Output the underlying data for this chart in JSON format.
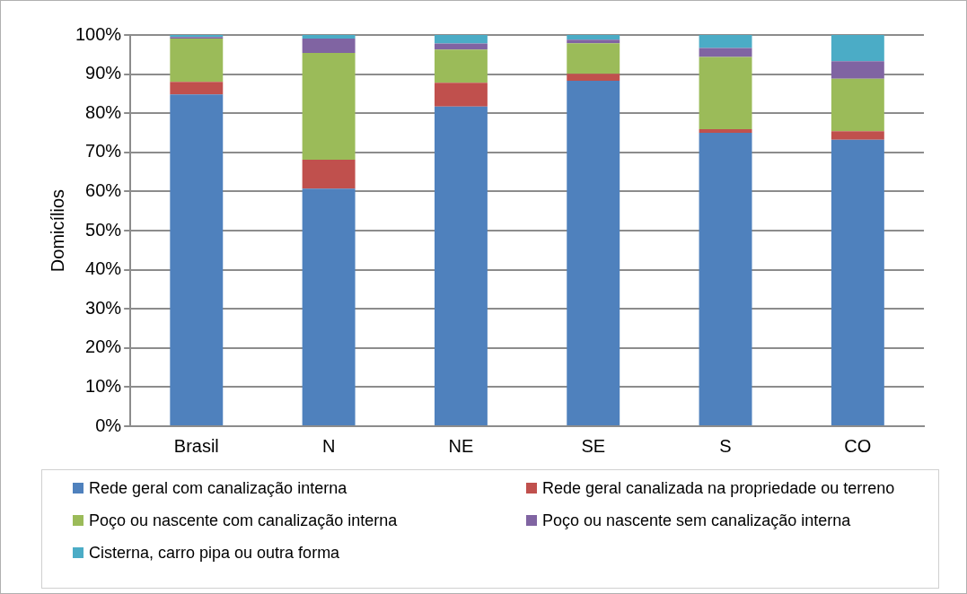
{
  "chart_data": {
    "type": "bar",
    "stacked": true,
    "ylabel": "Domicílios",
    "categories": [
      "Brasil",
      "N",
      "NE",
      "SE",
      "S",
      "CO"
    ],
    "series": [
      {
        "name": "Rede geral com canalização interna",
        "color": "#4f81bd",
        "values": [
          84.8,
          60.7,
          81.7,
          88.3,
          75.0,
          73.2
        ]
      },
      {
        "name": "Rede geral canalizada na propriedade ou terreno",
        "color": "#c0504d",
        "values": [
          3.2,
          7.4,
          6.1,
          1.8,
          0.9,
          2.2
        ]
      },
      {
        "name": "Poço ou nascente com canalização interna",
        "color": "#9bbb59",
        "values": [
          11.1,
          27.3,
          8.5,
          7.8,
          18.5,
          13.4
        ]
      },
      {
        "name": "Poço ou nascente sem canalização interna",
        "color": "#8064a2",
        "values": [
          0.4,
          3.7,
          1.5,
          0.9,
          2.3,
          4.5
        ]
      },
      {
        "name": "Cisterna, carro pipa ou outra forma",
        "color": "#4bacc6",
        "values": [
          0.5,
          0.9,
          2.2,
          1.2,
          3.3,
          6.7
        ]
      }
    ],
    "ylim": [
      0,
      100
    ],
    "yticks": [
      {
        "value": 0,
        "label": "0%"
      },
      {
        "value": 10,
        "label": "10%"
      },
      {
        "value": 20,
        "label": "20%"
      },
      {
        "value": 30,
        "label": "30%"
      },
      {
        "value": 40,
        "label": "40%"
      },
      {
        "value": 50,
        "label": "50%"
      },
      {
        "value": 60,
        "label": "60%"
      },
      {
        "value": 70,
        "label": "70%"
      },
      {
        "value": 80,
        "label": "80%"
      },
      {
        "value": 90,
        "label": "90%"
      },
      {
        "value": 100,
        "label": "100%"
      }
    ],
    "grid": "y",
    "legend": "bottom"
  }
}
